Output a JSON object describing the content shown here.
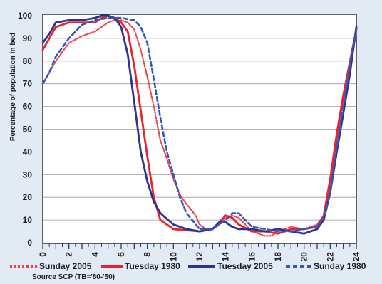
{
  "chart_data": {
    "type": "line",
    "ylabel": "Percentage of population in bed",
    "xlabel": "",
    "xlim": [
      0,
      24
    ],
    "ylim": [
      0,
      100
    ],
    "x_ticks": [
      0,
      2,
      4,
      6,
      8,
      10,
      12,
      14,
      16,
      18,
      20,
      22,
      24
    ],
    "y_ticks": [
      0,
      10,
      20,
      30,
      40,
      50,
      60,
      70,
      80,
      90,
      100
    ],
    "legend_position": "bottom",
    "source": "Source SCP (TB='80-'50)",
    "series": [
      {
        "name": "Sunday 2005",
        "color": "#e8454a",
        "style": "dotted",
        "points": [
          [
            0,
            70
          ],
          [
            1,
            80
          ],
          [
            2,
            88
          ],
          [
            3,
            91
          ],
          [
            4,
            93
          ],
          [
            4.5,
            95
          ],
          [
            5,
            97
          ],
          [
            5.5,
            98
          ],
          [
            6,
            98
          ],
          [
            6.5,
            97
          ],
          [
            7,
            94
          ],
          [
            7.5,
            85
          ],
          [
            8,
            73
          ],
          [
            8.5,
            60
          ],
          [
            9,
            45
          ],
          [
            9.5,
            37
          ],
          [
            10,
            28
          ],
          [
            10.5,
            21
          ],
          [
            11,
            17
          ],
          [
            11.3,
            15
          ],
          [
            11.7,
            12
          ],
          [
            12,
            8
          ],
          [
            12.5,
            6
          ],
          [
            13,
            6
          ],
          [
            13.5,
            8
          ],
          [
            14,
            11
          ],
          [
            14.5,
            12
          ],
          [
            15,
            11
          ],
          [
            15.5,
            8
          ],
          [
            16,
            5
          ],
          [
            16.5,
            4
          ],
          [
            17,
            3
          ],
          [
            17.5,
            3
          ],
          [
            18,
            5
          ],
          [
            19,
            7
          ],
          [
            20,
            6
          ],
          [
            21,
            8
          ],
          [
            21.5,
            12
          ],
          [
            22,
            25
          ],
          [
            22.5,
            45
          ],
          [
            23,
            62
          ],
          [
            23.5,
            77
          ],
          [
            24,
            93
          ]
        ]
      },
      {
        "name": "Tuesday 1980",
        "color": "#e8232b",
        "style": "solid",
        "points": [
          [
            0,
            85
          ],
          [
            0.5,
            90
          ],
          [
            1,
            95
          ],
          [
            2,
            97
          ],
          [
            3,
            97
          ],
          [
            4,
            97
          ],
          [
            4.5,
            99
          ],
          [
            5,
            100
          ],
          [
            6,
            97
          ],
          [
            6.5,
            93
          ],
          [
            7,
            78
          ],
          [
            7.5,
            58
          ],
          [
            8,
            38
          ],
          [
            8.5,
            20
          ],
          [
            9,
            10
          ],
          [
            10,
            6
          ],
          [
            11,
            5.5
          ],
          [
            12,
            5
          ],
          [
            13,
            6
          ],
          [
            13.5,
            9
          ],
          [
            14,
            12
          ],
          [
            14.5,
            11
          ],
          [
            15,
            8
          ],
          [
            16,
            5
          ],
          [
            17,
            5
          ],
          [
            18,
            4
          ],
          [
            19,
            6
          ],
          [
            20,
            6
          ],
          [
            21,
            7
          ],
          [
            21.5,
            12
          ],
          [
            22,
            28
          ],
          [
            22.5,
            48
          ],
          [
            23,
            65
          ],
          [
            24,
            94
          ]
        ]
      },
      {
        "name": "Tuesday 2005",
        "color": "#2a3590",
        "style": "solid",
        "points": [
          [
            0,
            88
          ],
          [
            0.5,
            92
          ],
          [
            1,
            97
          ],
          [
            2,
            98
          ],
          [
            3,
            98
          ],
          [
            4,
            99
          ],
          [
            4.5,
            100
          ],
          [
            5,
            100
          ],
          [
            5.5,
            99
          ],
          [
            6,
            95
          ],
          [
            6.5,
            83
          ],
          [
            7,
            62
          ],
          [
            7.5,
            40
          ],
          [
            8,
            27
          ],
          [
            8.5,
            18
          ],
          [
            9,
            13
          ],
          [
            10,
            8
          ],
          [
            11,
            6
          ],
          [
            12,
            5
          ],
          [
            13,
            6
          ],
          [
            13.5,
            9
          ],
          [
            14,
            9
          ],
          [
            14.5,
            7
          ],
          [
            15,
            6
          ],
          [
            16,
            6
          ],
          [
            17,
            5
          ],
          [
            18,
            6
          ],
          [
            19,
            5
          ],
          [
            20,
            4
          ],
          [
            21,
            6
          ],
          [
            21.5,
            10
          ],
          [
            22,
            22
          ],
          [
            22.5,
            40
          ],
          [
            23,
            57
          ],
          [
            23.5,
            74
          ],
          [
            24,
            95
          ]
        ]
      },
      {
        "name": "Sunday 1980",
        "color": "#3656b8",
        "style": "dashed",
        "points": [
          [
            0,
            70
          ],
          [
            0.5,
            75
          ],
          [
            1,
            82
          ],
          [
            2,
            90
          ],
          [
            3,
            96
          ],
          [
            4,
            98
          ],
          [
            5,
            99
          ],
          [
            6,
            99
          ],
          [
            7,
            98
          ],
          [
            7.5,
            95
          ],
          [
            8,
            88
          ],
          [
            8.5,
            72
          ],
          [
            9,
            55
          ],
          [
            9.5,
            40
          ],
          [
            10,
            30
          ],
          [
            10.5,
            20
          ],
          [
            11,
            13
          ],
          [
            12,
            6
          ],
          [
            13,
            6
          ],
          [
            13.5,
            8
          ],
          [
            14,
            10
          ],
          [
            14.5,
            13
          ],
          [
            15,
            13
          ],
          [
            15.5,
            10
          ],
          [
            16,
            7
          ],
          [
            17,
            6
          ],
          [
            18,
            5
          ],
          [
            19,
            5
          ],
          [
            20,
            6
          ],
          [
            21,
            7
          ],
          [
            21.5,
            11
          ],
          [
            22,
            22
          ],
          [
            22.5,
            42
          ],
          [
            23,
            60
          ],
          [
            23.5,
            78
          ],
          [
            24,
            94
          ]
        ]
      }
    ]
  }
}
